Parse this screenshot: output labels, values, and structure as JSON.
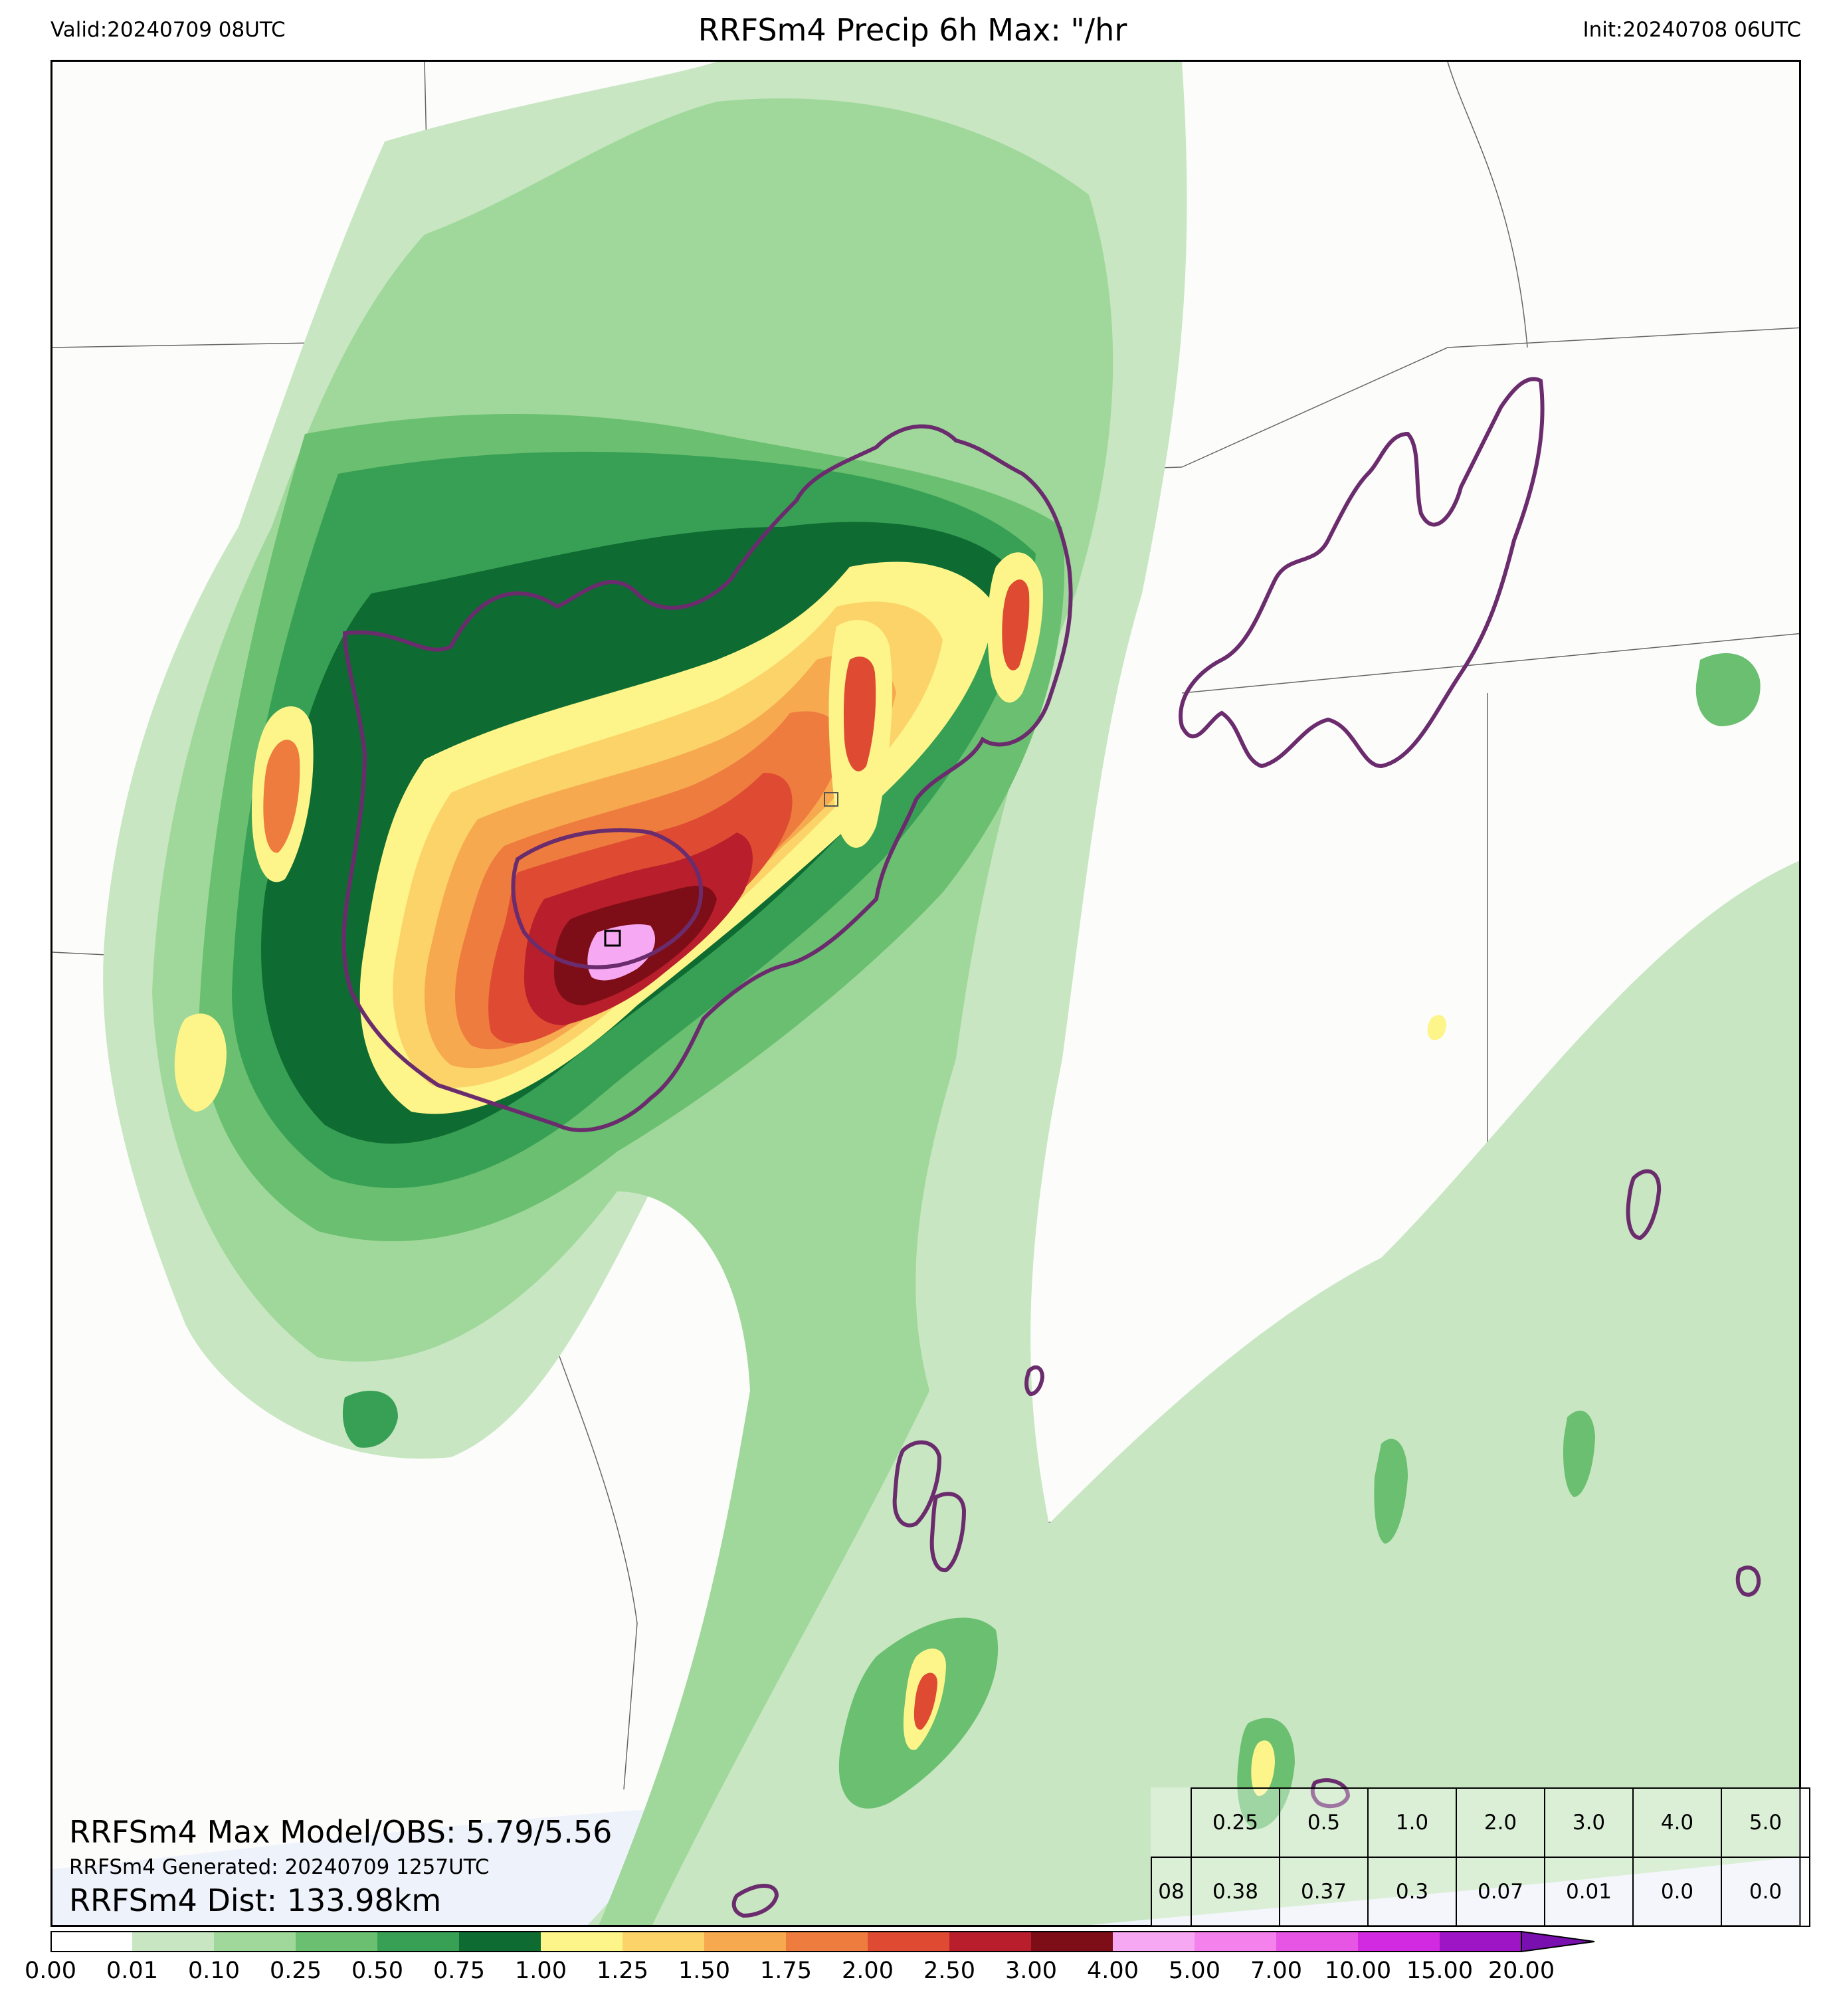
{
  "header": {
    "valid": "Valid:20240709 08UTC",
    "title": "RRFSm4 Precip 6h Max: \"/hr",
    "init": "Init:20240708 06UTC"
  },
  "stats": {
    "max_obs": "RRFSm4 Max Model/OBS: 5.79/5.56",
    "generated": "RRFSm4 Generated: 20240709 1257UTC",
    "dist": "RRFSm4 Dist: 133.98km"
  },
  "threshold_table": {
    "thresholds": [
      "0.25",
      "0.5",
      "1.0",
      "2.0",
      "3.0",
      "4.0",
      "5.0"
    ],
    "row_label": "08",
    "values": [
      "0.38",
      "0.37",
      "0.3",
      "0.07",
      "0.01",
      "0.0",
      "0.0"
    ]
  },
  "colorbar": {
    "ticks": [
      "0.00",
      "0.01",
      "0.10",
      "0.25",
      "0.50",
      "0.75",
      "1.00",
      "1.25",
      "1.50",
      "1.75",
      "2.00",
      "2.50",
      "3.00",
      "4.00",
      "5.00",
      "7.00",
      "10.00",
      "15.00",
      "20.00"
    ],
    "colors": [
      "#ffffff",
      "#c7e6c1",
      "#9fd89a",
      "#6abf70",
      "#38a055",
      "#0e6b31",
      "#fdf58a",
      "#fbd369",
      "#f6a94f",
      "#ee7c3e",
      "#df4a33",
      "#b81e2b",
      "#7d0e17",
      "#f6a9f2",
      "#f481ec",
      "#e655e3",
      "#d12ae0",
      "#9e15c6"
    ]
  },
  "map": {
    "precip_colors": {
      "c001": "#c7e6c1",
      "c010": "#9fd89a",
      "c025": "#6abf70",
      "c050": "#38a055",
      "c075": "#0e6b31",
      "c100": "#fdf58a",
      "c125": "#fbd369",
      "c150": "#f6a94f",
      "c175": "#ee7c3e",
      "c200": "#df4a33",
      "c250": "#b81e2b",
      "c300": "#7d0e17",
      "c400": "#f6a9f2"
    },
    "obs_contour_color": "#6b2c6e",
    "water_color": "#eef2fb"
  }
}
